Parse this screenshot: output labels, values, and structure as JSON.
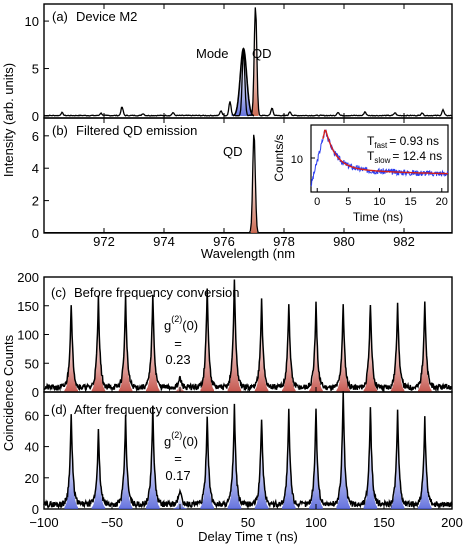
{
  "chart_data": [
    {
      "panel": "(a)",
      "type": "line",
      "title": "Device M2",
      "annotations": [
        "Mode",
        "QD"
      ],
      "ylabel": "Intensity (arb. units)",
      "yticks": [
        "0",
        "5",
        "10"
      ],
      "ylim": [
        0,
        11.8
      ],
      "xlim": [
        970.0,
        983.6
      ],
      "peaks": [
        {
          "x": 970.6,
          "y": 0.3
        },
        {
          "x": 971.9,
          "y": 0.25
        },
        {
          "x": 972.6,
          "y": 0.9
        },
        {
          "x": 973.3,
          "y": 0.2
        },
        {
          "x": 974.3,
          "y": 0.3
        },
        {
          "x": 975.9,
          "y": 0.5
        },
        {
          "x": 976.2,
          "y": 1.5
        },
        {
          "x": 976.65,
          "y": 7.1
        },
        {
          "x": 977.05,
          "y": 11.5
        },
        {
          "x": 977.6,
          "y": 0.8
        },
        {
          "x": 978.2,
          "y": 0.4
        },
        {
          "x": 979.8,
          "y": 0.35
        },
        {
          "x": 980.7,
          "y": 0.4
        },
        {
          "x": 981.7,
          "y": 0.3
        },
        {
          "x": 982.6,
          "y": 0.3
        },
        {
          "x": 983.3,
          "y": 0.6
        }
      ]
    },
    {
      "panel": "(b)",
      "type": "line",
      "title": "Filtered QD emission",
      "annotations": [
        "QD"
      ],
      "yticks": [
        "0",
        "2",
        "4",
        "6"
      ],
      "ylim": [
        0,
        7.1
      ],
      "xlabel": "Wavelength (nm",
      "xticks": [
        "972",
        "974",
        "976",
        "978",
        "980",
        "982"
      ],
      "xlim": [
        970.0,
        983.6
      ],
      "peaks": [
        {
          "x": 977.0,
          "y": 6.2
        }
      ],
      "inset": {
        "type": "line",
        "xlabel": "Time (ns)",
        "ylabel": "Counts/s",
        "xticks": [
          "0",
          "5",
          "10",
          "15",
          "20"
        ],
        "ytick": "10",
        "xlim": [
          -1,
          21
        ],
        "t_fast_label": "T",
        "t_fast_sub": "fast",
        "t_fast_value": "= 0.93 ns",
        "t_slow_label": "T",
        "t_slow_sub": "slow",
        "t_slow_value": "= 12.4 ns",
        "data_color": "#2b3cf0",
        "fit_color": "#d4201c"
      }
    },
    {
      "panel": "(c)",
      "type": "line",
      "title": "Before frequency conversion",
      "g2_label": "g",
      "g2_sup": "(2)",
      "g2_arg": "(0)",
      "g2_eq": "=",
      "g2_value": "0.23",
      "yticks": [
        "0",
        "50",
        "100",
        "150",
        "200"
      ],
      "ylim": [
        0,
        200
      ],
      "xlim": [
        -100,
        200
      ],
      "fill_color": "#c0453c",
      "peaks": [
        {
          "x": -80,
          "y": 148
        },
        {
          "x": -60,
          "y": 157
        },
        {
          "x": -40,
          "y": 158
        },
        {
          "x": -20,
          "y": 163
        },
        {
          "x": 0,
          "y": 18
        },
        {
          "x": 20,
          "y": 175
        },
        {
          "x": 40,
          "y": 190
        },
        {
          "x": 60,
          "y": 158
        },
        {
          "x": 80,
          "y": 147
        },
        {
          "x": 100,
          "y": 145
        },
        {
          "x": 120,
          "y": 146
        },
        {
          "x": 140,
          "y": 148
        },
        {
          "x": 160,
          "y": 150
        },
        {
          "x": 180,
          "y": 152
        }
      ]
    },
    {
      "panel": "(d)",
      "type": "line",
      "title": "After frequency conversion",
      "g2_label": "g",
      "g2_sup": "(2)",
      "g2_arg": "(0)",
      "g2_eq": "=",
      "g2_value": "0.17",
      "ylabel_shared": "Coincidence Counts",
      "yticks": [
        "0",
        "20",
        "40",
        "60"
      ],
      "ylim": [
        0,
        75
      ],
      "xlabel": "Delay Time τ (ns)",
      "xticks": [
        "−100",
        "−50",
        "0",
        "50",
        "100",
        "150",
        "200"
      ],
      "xlim": [
        -100,
        200
      ],
      "fill_color": "#4a5ad8",
      "peaks": [
        {
          "x": -80,
          "y": 58
        },
        {
          "x": -60,
          "y": 47
        },
        {
          "x": -40,
          "y": 56
        },
        {
          "x": -20,
          "y": 62
        },
        {
          "x": 0,
          "y": 10
        },
        {
          "x": 20,
          "y": 58
        },
        {
          "x": 40,
          "y": 63
        },
        {
          "x": 60,
          "y": 56
        },
        {
          "x": 80,
          "y": 60
        },
        {
          "x": 100,
          "y": 61
        },
        {
          "x": 120,
          "y": 72
        },
        {
          "x": 140,
          "y": 63
        },
        {
          "x": 160,
          "y": 59
        },
        {
          "x": 180,
          "y": 55
        }
      ]
    }
  ]
}
